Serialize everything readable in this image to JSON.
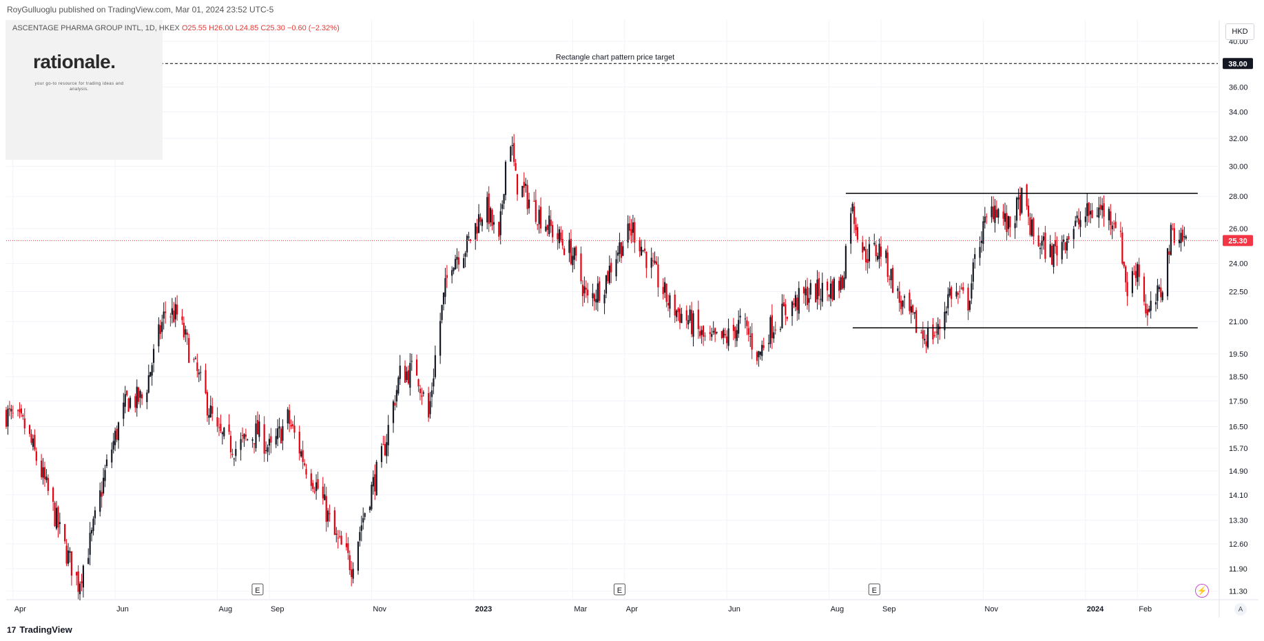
{
  "header": {
    "published_by": "RoyGulluoglu published on TradingView.com, Mar 01, 2024 23:52 UTC-5",
    "currency": "HKD"
  },
  "symbol": {
    "name": "ASCENTAGE PHARMA GROUP INTL, 1D, HKEX",
    "open": "O25.55",
    "high": "H26.00",
    "low": "L24.85",
    "close": "C25.30",
    "change": "−0.60 (−2.32%)"
  },
  "logo": {
    "name": "rationale.",
    "tagline": "your go-to resource for trading ideas and analysis."
  },
  "footer": {
    "brand": "TradingView",
    "brand_icon": "17"
  },
  "colors": {
    "up": "#131722",
    "down": "#e5000f",
    "last_price": "#f23645",
    "grid": "#f0f3fa"
  },
  "icons": [
    "tradingview-logo-icon",
    "earnings-marker-icon",
    "flash-icon",
    "auto-scale-icon"
  ],
  "chart_data": {
    "type": "candlestick",
    "title": "ASCENTAGE PHARMA GROUP INTL, 1D, HKEX",
    "ylabel": "HKD",
    "yscale": "log",
    "ylim": [
      11.1,
      42.0
    ],
    "xlim": [
      "2022-03-28",
      "2024-03-20"
    ],
    "y_ticks": [
      "40.00",
      "38.00",
      "36.00",
      "34.00",
      "32.00",
      "30.00",
      "28.00",
      "26.00",
      "24.00",
      "22.50",
      "21.00",
      "19.50",
      "18.50",
      "17.50",
      "16.50",
      "15.70",
      "14.90",
      "14.10",
      "13.30",
      "12.60",
      "11.90",
      "11.30"
    ],
    "x_ticks": [
      {
        "date": "2022-04-01",
        "label": "Apr",
        "bold": false
      },
      {
        "date": "2022-06-01",
        "label": "Jun",
        "bold": false
      },
      {
        "date": "2022-08-01",
        "label": "Aug",
        "bold": false
      },
      {
        "date": "2022-09-01",
        "label": "Sep",
        "bold": false
      },
      {
        "date": "2022-11-01",
        "label": "Nov",
        "bold": false
      },
      {
        "date": "2023-01-01",
        "label": "2023",
        "bold": true
      },
      {
        "date": "2023-03-01",
        "label": "Mar",
        "bold": false
      },
      {
        "date": "2023-04-01",
        "label": "Apr",
        "bold": false
      },
      {
        "date": "2023-06-01",
        "label": "Jun",
        "bold": false
      },
      {
        "date": "2023-08-01",
        "label": "Aug",
        "bold": false
      },
      {
        "date": "2023-09-01",
        "label": "Sep",
        "bold": false
      },
      {
        "date": "2023-11-01",
        "label": "Nov",
        "bold": false
      },
      {
        "date": "2024-01-01",
        "label": "2024",
        "bold": true
      },
      {
        "date": "2024-02-01",
        "label": "Feb",
        "bold": false
      }
    ],
    "last_price": {
      "value": 25.3,
      "label": "25.30"
    },
    "target_line": {
      "value": 38.0,
      "label": "38.00",
      "text": "Rectangle chart pattern price target"
    },
    "rectangle": {
      "start": "2023-08-11",
      "end": "2024-03-08",
      "top": 28.2,
      "bottom": 20.7
    },
    "earnings": [
      {
        "date": "2022-08-25",
        "label": "E"
      },
      {
        "date": "2023-03-29",
        "label": "E"
      },
      {
        "date": "2023-08-28",
        "label": "E"
      }
    ],
    "close_path": [
      [
        "2022-03-28",
        17.0
      ],
      [
        "2022-04-08",
        16.5
      ],
      [
        "2022-04-20",
        14.5
      ],
      [
        "2022-05-01",
        12.6
      ],
      [
        "2022-05-10",
        11.5
      ],
      [
        "2022-05-18",
        12.8
      ],
      [
        "2022-05-28",
        15.3
      ],
      [
        "2022-06-08",
        17.5
      ],
      [
        "2022-06-18",
        17.6
      ],
      [
        "2022-07-01",
        21.5
      ],
      [
        "2022-07-08",
        21.3
      ],
      [
        "2022-07-18",
        19.0
      ],
      [
        "2022-08-01",
        16.2
      ],
      [
        "2022-08-12",
        15.7
      ],
      [
        "2022-08-25",
        16.3
      ],
      [
        "2022-09-02",
        15.6
      ],
      [
        "2022-09-12",
        16.8
      ],
      [
        "2022-09-22",
        15.2
      ],
      [
        "2022-10-01",
        14.2
      ],
      [
        "2022-10-10",
        12.8
      ],
      [
        "2022-10-20",
        12.0
      ],
      [
        "2022-10-28",
        13.6
      ],
      [
        "2022-11-08",
        15.5
      ],
      [
        "2022-11-18",
        18.6
      ],
      [
        "2022-11-28",
        18.8
      ],
      [
        "2022-12-05",
        16.8
      ],
      [
        "2022-12-10",
        20.0
      ],
      [
        "2022-12-18",
        24.2
      ],
      [
        "2022-12-28",
        25.0
      ],
      [
        "2023-01-08",
        27.5
      ],
      [
        "2023-01-16",
        25.0
      ],
      [
        "2023-01-22",
        33.0
      ],
      [
        "2023-01-26",
        29.0
      ],
      [
        "2023-02-08",
        27.0
      ],
      [
        "2023-02-20",
        25.5
      ],
      [
        "2023-03-01",
        24.5
      ],
      [
        "2023-03-10",
        22.0
      ],
      [
        "2023-03-20",
        23.0
      ],
      [
        "2023-03-28",
        24.8
      ],
      [
        "2023-04-06",
        26.0
      ],
      [
        "2023-04-15",
        24.2
      ],
      [
        "2023-04-28",
        21.8
      ],
      [
        "2023-05-10",
        21.0
      ],
      [
        "2023-05-20",
        20.0
      ],
      [
        "2023-06-01",
        20.2
      ],
      [
        "2023-06-10",
        21.0
      ],
      [
        "2023-06-20",
        19.4
      ],
      [
        "2023-06-26",
        20.6
      ],
      [
        "2023-07-08",
        21.7
      ],
      [
        "2023-07-20",
        22.4
      ],
      [
        "2023-08-01",
        22.6
      ],
      [
        "2023-08-09",
        23.0
      ],
      [
        "2023-08-14",
        27.5
      ],
      [
        "2023-08-22",
        24.5
      ],
      [
        "2023-09-01",
        24.8
      ],
      [
        "2023-09-12",
        22.0
      ],
      [
        "2023-09-26",
        20.3
      ],
      [
        "2023-10-05",
        20.5
      ],
      [
        "2023-10-12",
        22.5
      ],
      [
        "2023-10-23",
        22.0
      ],
      [
        "2023-10-30",
        25.5
      ],
      [
        "2023-11-08",
        27.5
      ],
      [
        "2023-11-16",
        26.0
      ],
      [
        "2023-11-24",
        27.8
      ],
      [
        "2023-12-01",
        25.5
      ],
      [
        "2023-12-12",
        24.5
      ],
      [
        "2023-12-20",
        25.5
      ],
      [
        "2024-01-01",
        26.8
      ],
      [
        "2024-01-10",
        27.2
      ],
      [
        "2024-01-20",
        26.5
      ],
      [
        "2024-01-26",
        22.5
      ],
      [
        "2024-02-01",
        24.0
      ],
      [
        "2024-02-07",
        21.2
      ],
      [
        "2024-02-15",
        22.5
      ],
      [
        "2024-02-22",
        26.0
      ],
      [
        "2024-03-01",
        25.3
      ]
    ]
  }
}
